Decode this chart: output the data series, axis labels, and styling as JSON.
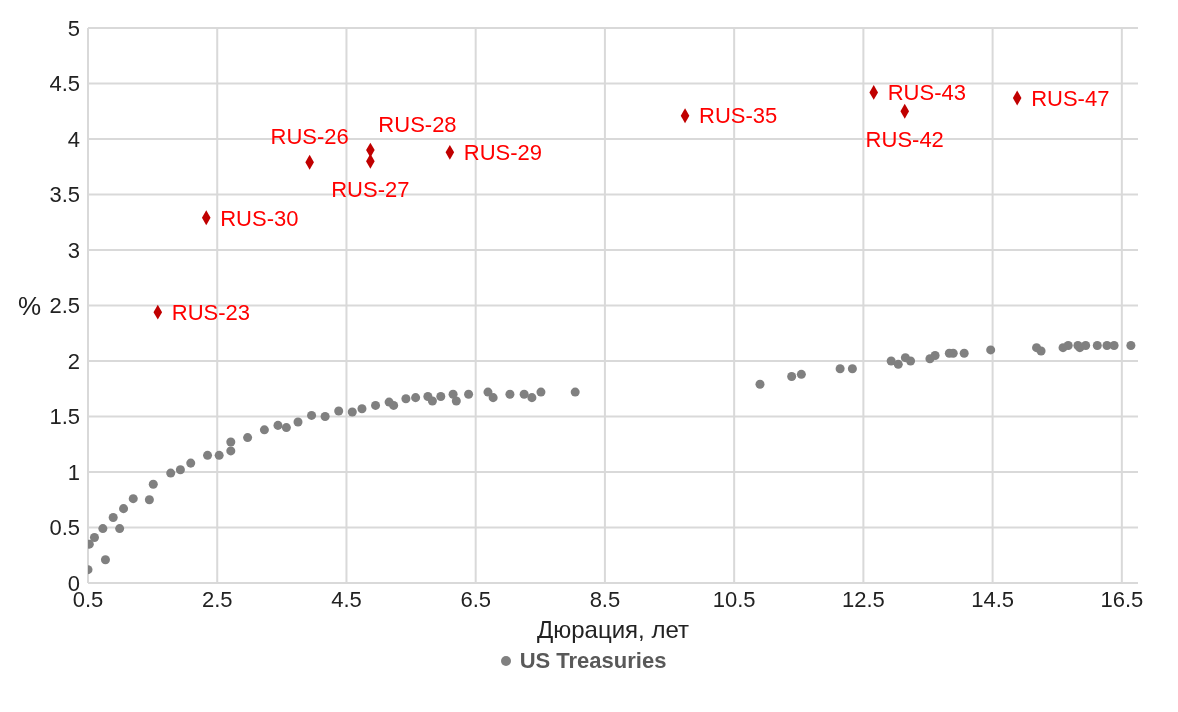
{
  "chart_data": {
    "type": "scatter",
    "xlabel": "Дюрация, лет",
    "ylabel": "%",
    "xlim": [
      0.5,
      16.75
    ],
    "xticks": [
      0.5,
      2.5,
      4.5,
      6.5,
      8.5,
      10.5,
      12.5,
      14.5,
      16.5
    ],
    "ylim": [
      0,
      5
    ],
    "yticks": [
      0,
      0.5,
      1,
      1.5,
      2,
      2.5,
      3,
      3.5,
      4,
      4.5,
      5
    ],
    "grid": true,
    "legend": "bottom",
    "series": [
      {
        "name": "US Treasuries",
        "color": "#808080",
        "marker": "circle",
        "x": [
          0.5,
          0.77,
          0.99,
          0.52,
          0.6,
          0.73,
          0.89,
          1.05,
          1.2,
          1.45,
          1.51,
          1.78,
          1.93,
          2.09,
          2.35,
          2.53,
          2.71,
          2.71,
          2.97,
          3.23,
          3.44,
          3.57,
          3.75,
          3.96,
          4.17,
          4.38,
          4.59,
          4.74,
          4.95,
          5.16,
          5.23,
          5.42,
          5.57,
          5.76,
          5.83,
          5.96,
          6.15,
          6.2,
          6.39,
          6.69,
          6.77,
          7.03,
          7.25,
          7.37,
          7.51,
          8.04,
          10.9,
          11.39,
          11.54,
          12.14,
          12.33,
          12.93,
          13.04,
          13.15,
          13.23,
          13.53,
          13.61,
          13.83,
          13.89,
          14.06,
          14.47,
          15.18,
          15.25,
          15.59,
          15.67,
          15.82,
          15.85,
          15.94,
          16.12,
          16.27,
          16.38,
          16.64
        ],
        "values": [
          0.12,
          0.21,
          0.49,
          0.35,
          0.41,
          0.49,
          0.59,
          0.67,
          0.76,
          0.75,
          0.89,
          0.99,
          1.02,
          1.08,
          1.15,
          1.15,
          1.19,
          1.27,
          1.31,
          1.38,
          1.42,
          1.4,
          1.45,
          1.51,
          1.5,
          1.55,
          1.54,
          1.57,
          1.6,
          1.63,
          1.6,
          1.66,
          1.67,
          1.68,
          1.64,
          1.68,
          1.7,
          1.64,
          1.7,
          1.72,
          1.67,
          1.7,
          1.7,
          1.67,
          1.72,
          1.72,
          1.79,
          1.86,
          1.88,
          1.93,
          1.93,
          2.0,
          1.97,
          2.03,
          2.0,
          2.02,
          2.05,
          2.07,
          2.07,
          2.07,
          2.1,
          2.12,
          2.09,
          2.12,
          2.14,
          2.14,
          2.12,
          2.14,
          2.14,
          2.14,
          2.14,
          2.14
        ]
      },
      {
        "color": "#c00000",
        "marker": "diamond",
        "x": [
          1.58,
          2.33,
          3.93,
          4.87,
          4.87,
          6.1,
          9.74,
          12.66,
          13.14,
          14.88
        ],
        "values": [
          2.44,
          3.29,
          3.79,
          3.9,
          3.8,
          3.88,
          4.21,
          4.42,
          4.25,
          4.37
        ]
      }
    ],
    "annotations": [
      {
        "text": "RUS-23",
        "x": 1.58,
        "y": 2.44
      },
      {
        "text": "RUS-30",
        "x": 2.33,
        "y": 3.29
      },
      {
        "text": "RUS-26",
        "x": 3.93,
        "y": 3.79
      },
      {
        "text": "RUS-28",
        "x": 4.87,
        "y": 3.9
      },
      {
        "text": "RUS-27",
        "x": 4.87,
        "y": 3.8
      },
      {
        "text": "RUS-29",
        "x": 6.1,
        "y": 3.88
      },
      {
        "text": "RUS-35",
        "x": 9.74,
        "y": 4.21
      },
      {
        "text": "RUS-43",
        "x": 12.66,
        "y": 4.42
      },
      {
        "text": "RUS-42",
        "x": 13.14,
        "y": 4.25
      },
      {
        "text": "RUS-47",
        "x": 14.88,
        "y": 4.37
      }
    ]
  }
}
